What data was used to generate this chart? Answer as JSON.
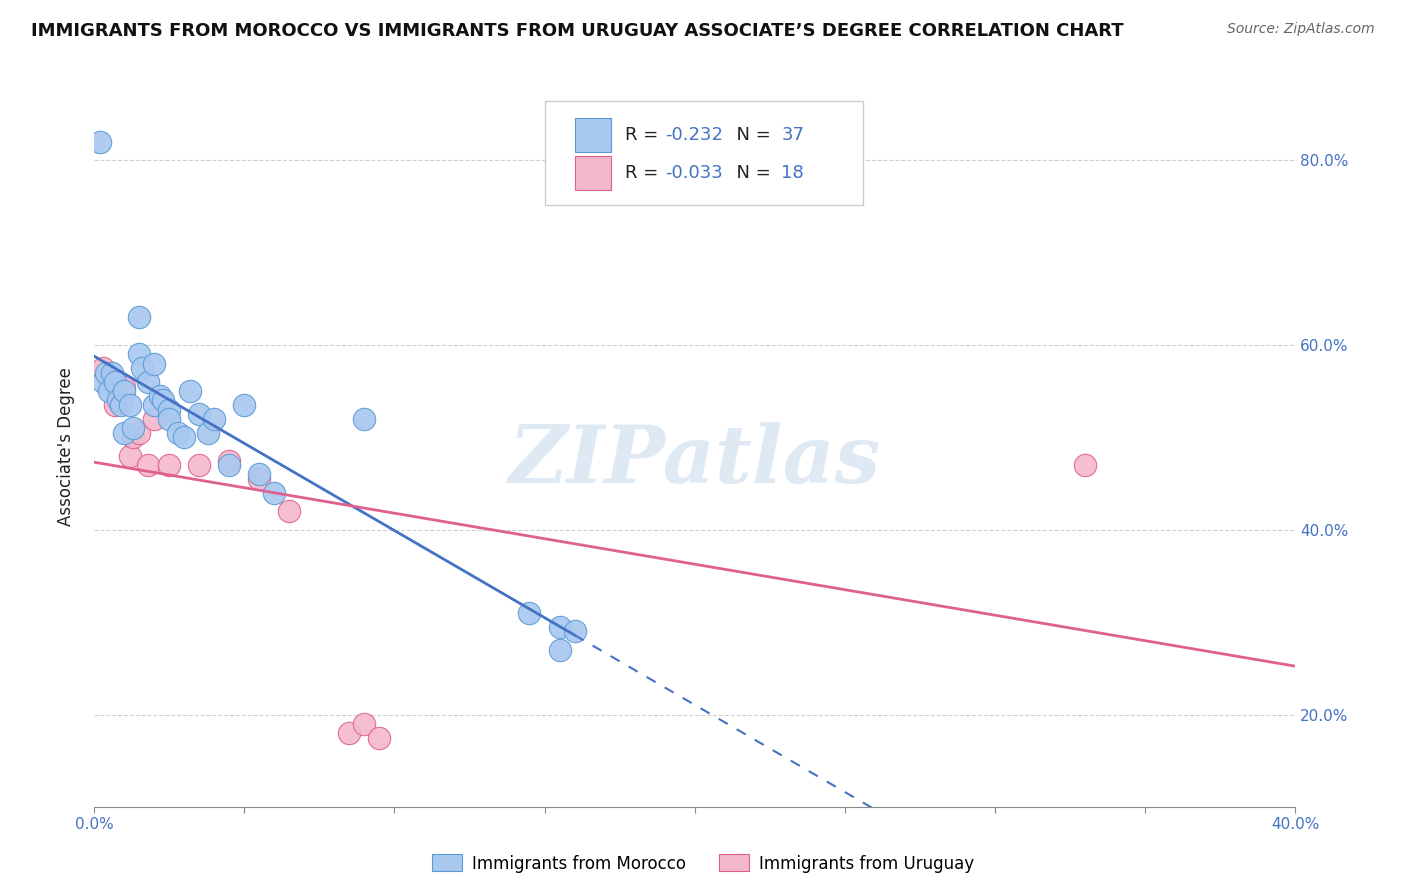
{
  "title": "IMMIGRANTS FROM MOROCCO VS IMMIGRANTS FROM URUGUAY ASSOCIATE’S DEGREE CORRELATION CHART",
  "source": "Source: ZipAtlas.com",
  "ylabel": "Associate's Degree",
  "xlim": [
    0.0,
    0.4
  ],
  "ylim": [
    0.1,
    0.88
  ],
  "yticks": [
    0.2,
    0.4,
    0.6,
    0.8
  ],
  "ytick_labels": [
    "20.0%",
    "40.0%",
    "60.0%",
    "80.0%"
  ],
  "morocco_color": "#a8c8f0",
  "morocco_edge": "#5a9ad4",
  "uruguay_color": "#f4b8cc",
  "uruguay_edge": "#e06090",
  "morocco_line_color": "#4472c4",
  "uruguay_line_color": "#e06090",
  "morocco_R": -0.232,
  "morocco_N": 37,
  "uruguay_R": -0.033,
  "uruguay_N": 18,
  "legend_label_morocco": "Immigrants from Morocco",
  "legend_label_uruguay": "Immigrants from Uruguay",
  "morocco_scatter_x": [
    0.002,
    0.003,
    0.004,
    0.005,
    0.006,
    0.007,
    0.008,
    0.009,
    0.01,
    0.01,
    0.012,
    0.013,
    0.015,
    0.015,
    0.016,
    0.018,
    0.02,
    0.02,
    0.022,
    0.023,
    0.025,
    0.025,
    0.028,
    0.03,
    0.032,
    0.035,
    0.038,
    0.04,
    0.045,
    0.05,
    0.055,
    0.06,
    0.09,
    0.145,
    0.155,
    0.155,
    0.16
  ],
  "morocco_scatter_y": [
    0.82,
    0.56,
    0.57,
    0.55,
    0.57,
    0.56,
    0.54,
    0.535,
    0.55,
    0.505,
    0.535,
    0.51,
    0.63,
    0.59,
    0.575,
    0.56,
    0.58,
    0.535,
    0.545,
    0.54,
    0.53,
    0.52,
    0.505,
    0.5,
    0.55,
    0.525,
    0.505,
    0.52,
    0.47,
    0.535,
    0.46,
    0.44,
    0.52,
    0.31,
    0.27,
    0.295,
    0.29
  ],
  "uruguay_scatter_x": [
    0.003,
    0.006,
    0.007,
    0.01,
    0.012,
    0.013,
    0.015,
    0.018,
    0.02,
    0.025,
    0.035,
    0.045,
    0.055,
    0.065,
    0.085,
    0.09,
    0.095,
    0.33
  ],
  "uruguay_scatter_y": [
    0.575,
    0.56,
    0.535,
    0.555,
    0.48,
    0.5,
    0.505,
    0.47,
    0.52,
    0.47,
    0.47,
    0.475,
    0.455,
    0.42,
    0.18,
    0.19,
    0.175,
    0.47
  ],
  "background_color": "#ffffff",
  "watermark": "ZIPatlas",
  "grid_color": "#d0d0d0",
  "value_color": "#4472c4",
  "label_color": "#222222"
}
